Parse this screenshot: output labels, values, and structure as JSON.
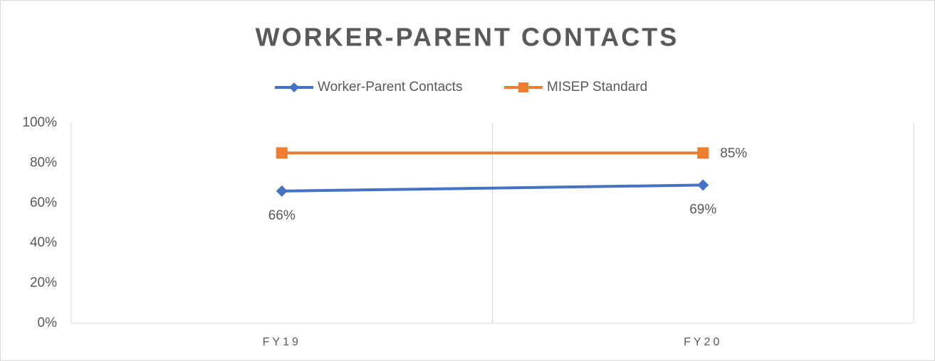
{
  "chart_data": {
    "type": "line",
    "title": "WORKER-PARENT CONTACTS",
    "categories": [
      "FY19",
      "FY20"
    ],
    "series": [
      {
        "name": "Worker-Parent Contacts",
        "color": "#4472c4",
        "marker": "diamond",
        "values": [
          66,
          69
        ],
        "value_labels": [
          "66%",
          "69%"
        ]
      },
      {
        "name": "MISEP Standard",
        "color": "#ed7d31",
        "marker": "square",
        "values": [
          85,
          85
        ],
        "value_labels": [
          null,
          "85%"
        ]
      }
    ],
    "ylim": [
      0,
      100
    ],
    "yticks": [
      {
        "value": 0,
        "label": "0%"
      },
      {
        "value": 20,
        "label": "20%"
      },
      {
        "value": 40,
        "label": "40%"
      },
      {
        "value": 60,
        "label": "60%"
      },
      {
        "value": 80,
        "label": "80%"
      },
      {
        "value": 100,
        "label": "100%"
      }
    ],
    "legend": "top",
    "grid": "x"
  }
}
